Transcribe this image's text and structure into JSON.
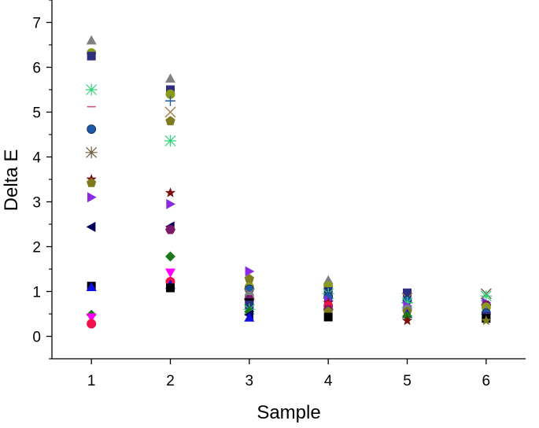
{
  "chart_data": {
    "type": "scatter",
    "title": "",
    "xlabel": "Sample",
    "ylabel": "Delta E",
    "xlim": [
      0.5,
      6.5
    ],
    "ylim": [
      -0.5,
      7.5
    ],
    "x_ticks": [
      1,
      2,
      3,
      4,
      5,
      6
    ],
    "y_ticks": [
      0,
      1,
      2,
      3,
      4,
      5,
      6,
      7
    ],
    "grid": false,
    "legend": "none",
    "points": [
      {
        "x": 1,
        "y": 6.6,
        "marker": "triangle-up",
        "color": "#808080"
      },
      {
        "x": 1,
        "y": 6.32,
        "marker": "circle",
        "color": "#8a9a1b"
      },
      {
        "x": 1,
        "y": 6.25,
        "marker": "square",
        "color": "#2e2e80"
      },
      {
        "x": 1,
        "y": 5.5,
        "marker": "asterisk",
        "color": "#2fd27a"
      },
      {
        "x": 1,
        "y": 5.12,
        "marker": "dash",
        "color": "#d14b72"
      },
      {
        "x": 1,
        "y": 4.62,
        "marker": "sphere",
        "color": "#1f5aa6"
      },
      {
        "x": 1,
        "y": 4.1,
        "marker": "asterisk",
        "color": "#6e5a3c"
      },
      {
        "x": 1,
        "y": 3.5,
        "marker": "star",
        "color": "#7a1010"
      },
      {
        "x": 1,
        "y": 3.42,
        "marker": "pentagon",
        "color": "#7d7a1f"
      },
      {
        "x": 1,
        "y": 3.1,
        "marker": "triangle-right",
        "color": "#8a2be2"
      },
      {
        "x": 1,
        "y": 2.44,
        "marker": "triangle-left",
        "color": "#00005c"
      },
      {
        "x": 1,
        "y": 1.12,
        "marker": "square",
        "color": "#000000"
      },
      {
        "x": 1,
        "y": 1.1,
        "marker": "triangle-up",
        "color": "#1010e0"
      },
      {
        "x": 1,
        "y": 0.48,
        "marker": "diamond",
        "color": "#1a7a1a"
      },
      {
        "x": 1,
        "y": 0.42,
        "marker": "triangle-down",
        "color": "#ff00ff"
      },
      {
        "x": 1,
        "y": 0.28,
        "marker": "circle",
        "color": "#f0104a"
      },
      {
        "x": 2,
        "y": 5.75,
        "marker": "triangle-up",
        "color": "#808080"
      },
      {
        "x": 2,
        "y": 5.5,
        "marker": "square",
        "color": "#2e2e80"
      },
      {
        "x": 2,
        "y": 5.4,
        "marker": "circle",
        "color": "#8a9a1b"
      },
      {
        "x": 2,
        "y": 5.25,
        "marker": "plus",
        "color": "#1f5aa6"
      },
      {
        "x": 2,
        "y": 5.0,
        "marker": "cross",
        "color": "#a0784a"
      },
      {
        "x": 2,
        "y": 4.8,
        "marker": "pentagon",
        "color": "#7d7a1f"
      },
      {
        "x": 2,
        "y": 4.36,
        "marker": "asterisk",
        "color": "#2fd27a"
      },
      {
        "x": 2,
        "y": 3.2,
        "marker": "star",
        "color": "#7a1010"
      },
      {
        "x": 2,
        "y": 2.95,
        "marker": "triangle-right",
        "color": "#8a2be2"
      },
      {
        "x": 2,
        "y": 2.45,
        "marker": "triangle-left",
        "color": "#00005c"
      },
      {
        "x": 2,
        "y": 2.38,
        "marker": "hexagon",
        "color": "#7a1a6a"
      },
      {
        "x": 2,
        "y": 1.78,
        "marker": "diamond",
        "color": "#1a7a1a"
      },
      {
        "x": 2,
        "y": 1.42,
        "marker": "triangle-down",
        "color": "#ff00ff"
      },
      {
        "x": 2,
        "y": 1.22,
        "marker": "circle",
        "color": "#f0104a"
      },
      {
        "x": 2,
        "y": 1.15,
        "marker": "triangle-up",
        "color": "#1010e0"
      },
      {
        "x": 2,
        "y": 1.08,
        "marker": "square",
        "color": "#000000"
      },
      {
        "x": 3,
        "y": 1.45,
        "marker": "triangle-right",
        "color": "#8a2be2"
      },
      {
        "x": 3,
        "y": 1.28,
        "marker": "pentagon",
        "color": "#7d7a1f"
      },
      {
        "x": 3,
        "y": 1.1,
        "marker": "circle",
        "color": "#8a9a1b"
      },
      {
        "x": 3,
        "y": 1.05,
        "marker": "sphere",
        "color": "#1f5aa6"
      },
      {
        "x": 3,
        "y": 0.95,
        "marker": "cross",
        "color": "#a0784a"
      },
      {
        "x": 3,
        "y": 0.9,
        "marker": "circle",
        "color": "#808080"
      },
      {
        "x": 3,
        "y": 0.82,
        "marker": "hexagon",
        "color": "#7a1a6a"
      },
      {
        "x": 3,
        "y": 0.75,
        "marker": "square",
        "color": "#000000"
      },
      {
        "x": 3,
        "y": 0.7,
        "marker": "square",
        "color": "#2e2e80"
      },
      {
        "x": 3,
        "y": 0.6,
        "marker": "asterisk",
        "color": "#2fd27a"
      },
      {
        "x": 3,
        "y": 0.55,
        "marker": "diamond",
        "color": "#1a7a1a"
      },
      {
        "x": 3,
        "y": 0.48,
        "marker": "triangle-left",
        "color": "#00005c"
      },
      {
        "x": 3,
        "y": 0.42,
        "marker": "triangle-up",
        "color": "#1010e0"
      },
      {
        "x": 4,
        "y": 1.25,
        "marker": "triangle-up",
        "color": "#808080"
      },
      {
        "x": 4,
        "y": 1.12,
        "marker": "circle",
        "color": "#8a9a1b"
      },
      {
        "x": 4,
        "y": 1.0,
        "marker": "square",
        "color": "#2e2e80"
      },
      {
        "x": 4,
        "y": 0.95,
        "marker": "asterisk",
        "color": "#2fd27a"
      },
      {
        "x": 4,
        "y": 0.88,
        "marker": "sphere",
        "color": "#1f5aa6"
      },
      {
        "x": 4,
        "y": 0.8,
        "marker": "triangle-right",
        "color": "#8a2be2"
      },
      {
        "x": 4,
        "y": 0.75,
        "marker": "star",
        "color": "#7a1010"
      },
      {
        "x": 4,
        "y": 0.68,
        "marker": "circle",
        "color": "#f0104a"
      },
      {
        "x": 4,
        "y": 0.6,
        "marker": "hexagon",
        "color": "#7a1a6a"
      },
      {
        "x": 4,
        "y": 0.55,
        "marker": "pentagon",
        "color": "#7d7a1f"
      },
      {
        "x": 4,
        "y": 0.43,
        "marker": "square",
        "color": "#000000"
      },
      {
        "x": 5,
        "y": 0.97,
        "marker": "square",
        "color": "#2e2e80"
      },
      {
        "x": 5,
        "y": 0.85,
        "marker": "cross",
        "color": "#a0784a"
      },
      {
        "x": 5,
        "y": 0.8,
        "marker": "sphere",
        "color": "#1f5aa6"
      },
      {
        "x": 5,
        "y": 0.75,
        "marker": "asterisk",
        "color": "#2fd27a"
      },
      {
        "x": 5,
        "y": 0.68,
        "marker": "triangle-right",
        "color": "#8a2be2"
      },
      {
        "x": 5,
        "y": 0.6,
        "marker": "circle",
        "color": "#808080"
      },
      {
        "x": 5,
        "y": 0.55,
        "marker": "pentagon",
        "color": "#7d7a1f"
      },
      {
        "x": 5,
        "y": 0.5,
        "marker": "triangle-up",
        "color": "#1010e0"
      },
      {
        "x": 5,
        "y": 0.45,
        "marker": "diamond",
        "color": "#1a7a1a"
      },
      {
        "x": 5,
        "y": 0.35,
        "marker": "star",
        "color": "#7a1010"
      },
      {
        "x": 6,
        "y": 0.95,
        "marker": "cross",
        "color": "#6e5a3c"
      },
      {
        "x": 6,
        "y": 0.9,
        "marker": "asterisk",
        "color": "#2fd27a"
      },
      {
        "x": 6,
        "y": 0.75,
        "marker": "triangle-right",
        "color": "#8a2be2"
      },
      {
        "x": 6,
        "y": 0.7,
        "marker": "hexagon",
        "color": "#7a1a6a"
      },
      {
        "x": 6,
        "y": 0.65,
        "marker": "circle",
        "color": "#8a9a1b"
      },
      {
        "x": 6,
        "y": 0.58,
        "marker": "triangle-up",
        "color": "#808080"
      },
      {
        "x": 6,
        "y": 0.52,
        "marker": "sphere",
        "color": "#1f5aa6"
      },
      {
        "x": 6,
        "y": 0.45,
        "marker": "square",
        "color": "#2e2e80"
      },
      {
        "x": 6,
        "y": 0.4,
        "marker": "square",
        "color": "#000000"
      },
      {
        "x": 6,
        "y": 0.35,
        "marker": "star",
        "color": "#7d7a1f"
      }
    ]
  }
}
